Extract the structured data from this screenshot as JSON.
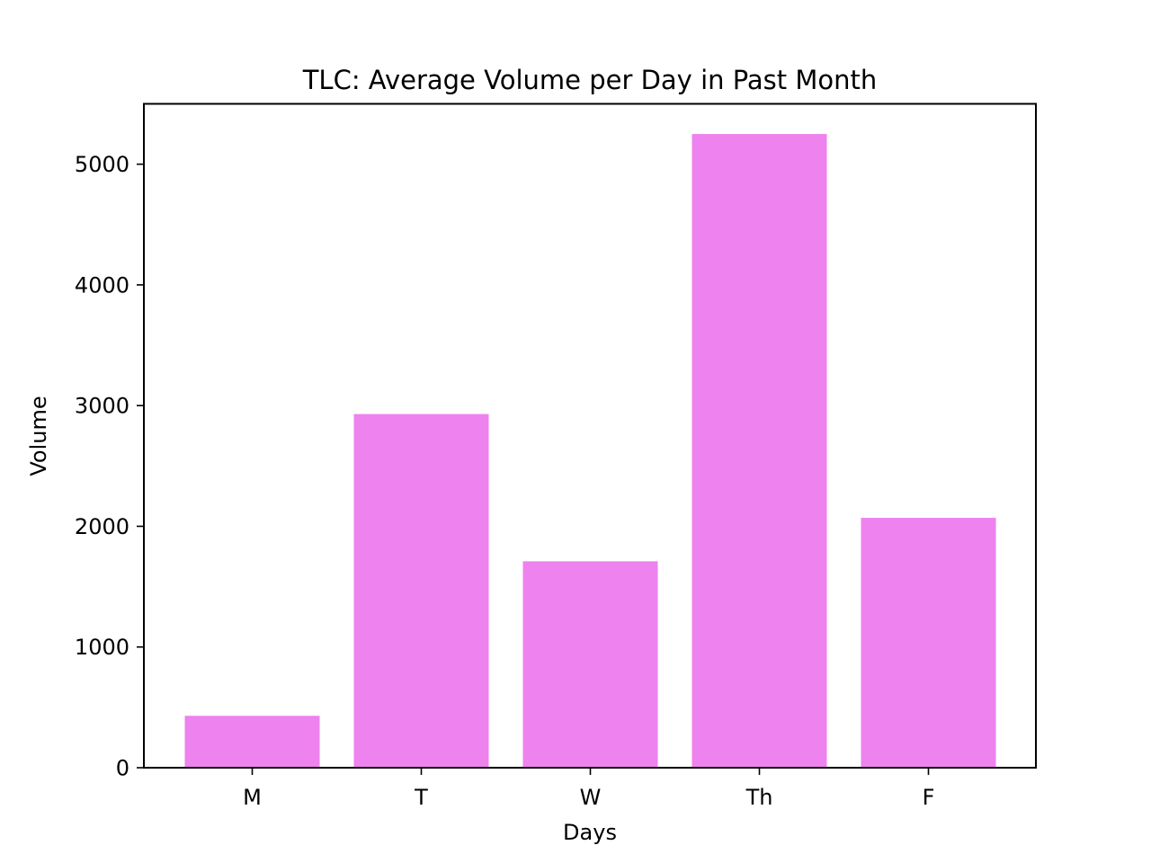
{
  "chart_data": {
    "type": "bar",
    "title": "TLC: Average Volume per Day in Past Month",
    "xlabel": "Days",
    "ylabel": "Volume",
    "categories": [
      "M",
      "T",
      "W",
      "Th",
      "F"
    ],
    "values": [
      430,
      2930,
      1710,
      5250,
      2070
    ],
    "ylim": [
      0,
      5500
    ],
    "yticks": [
      0,
      1000,
      2000,
      3000,
      4000,
      5000
    ],
    "bar_color": "#ee82ee",
    "grid": false,
    "legend": "none"
  }
}
